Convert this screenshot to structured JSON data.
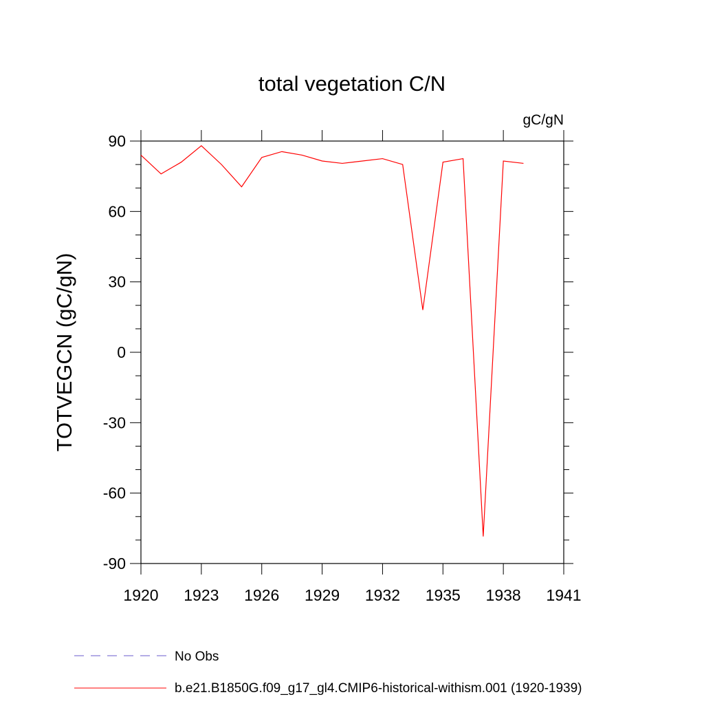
{
  "chart_data": {
    "type": "line",
    "title": "total vegetation C/N",
    "units_label": "gC/gN",
    "xlabel": "",
    "ylabel": "TOTVEGCN  (gC/gN)",
    "xlim": [
      1920,
      1941
    ],
    "ylim": [
      -90,
      90
    ],
    "x_ticks": [
      "1920",
      "1923",
      "1926",
      "1929",
      "1932",
      "1935",
      "1938",
      "1941"
    ],
    "y_ticks": [
      "90",
      "60",
      "30",
      "0",
      "-30",
      "-60",
      "-90"
    ],
    "grid": false,
    "series": [
      {
        "name": "b.e21.B1850G.f09_g17_gl4.CMIP6-historical-withism.001 (1920-1939)",
        "color": "#ff0000",
        "style": "solid",
        "x": [
          1920,
          1921,
          1922,
          1923,
          1924,
          1925,
          1926,
          1927,
          1928,
          1929,
          1930,
          1931,
          1932,
          1933,
          1934,
          1935,
          1936,
          1937,
          1938,
          1939
        ],
        "y": [
          84,
          76,
          81,
          88,
          80,
          70.5,
          83,
          85.5,
          84,
          81.5,
          80.5,
          81.5,
          82.5,
          80,
          18,
          81,
          82.5,
          -78.5,
          81.5,
          80.5
        ]
      }
    ],
    "legend": {
      "placement": "bottom",
      "entries": [
        {
          "label": "No Obs",
          "color": "#6a5acd",
          "style": "dashed"
        },
        {
          "label": "b.e21.B1850G.f09_g17_gl4.CMIP6-historical-withism.001 (1920-1939)",
          "color": "#ff0000",
          "style": "solid"
        }
      ]
    }
  }
}
